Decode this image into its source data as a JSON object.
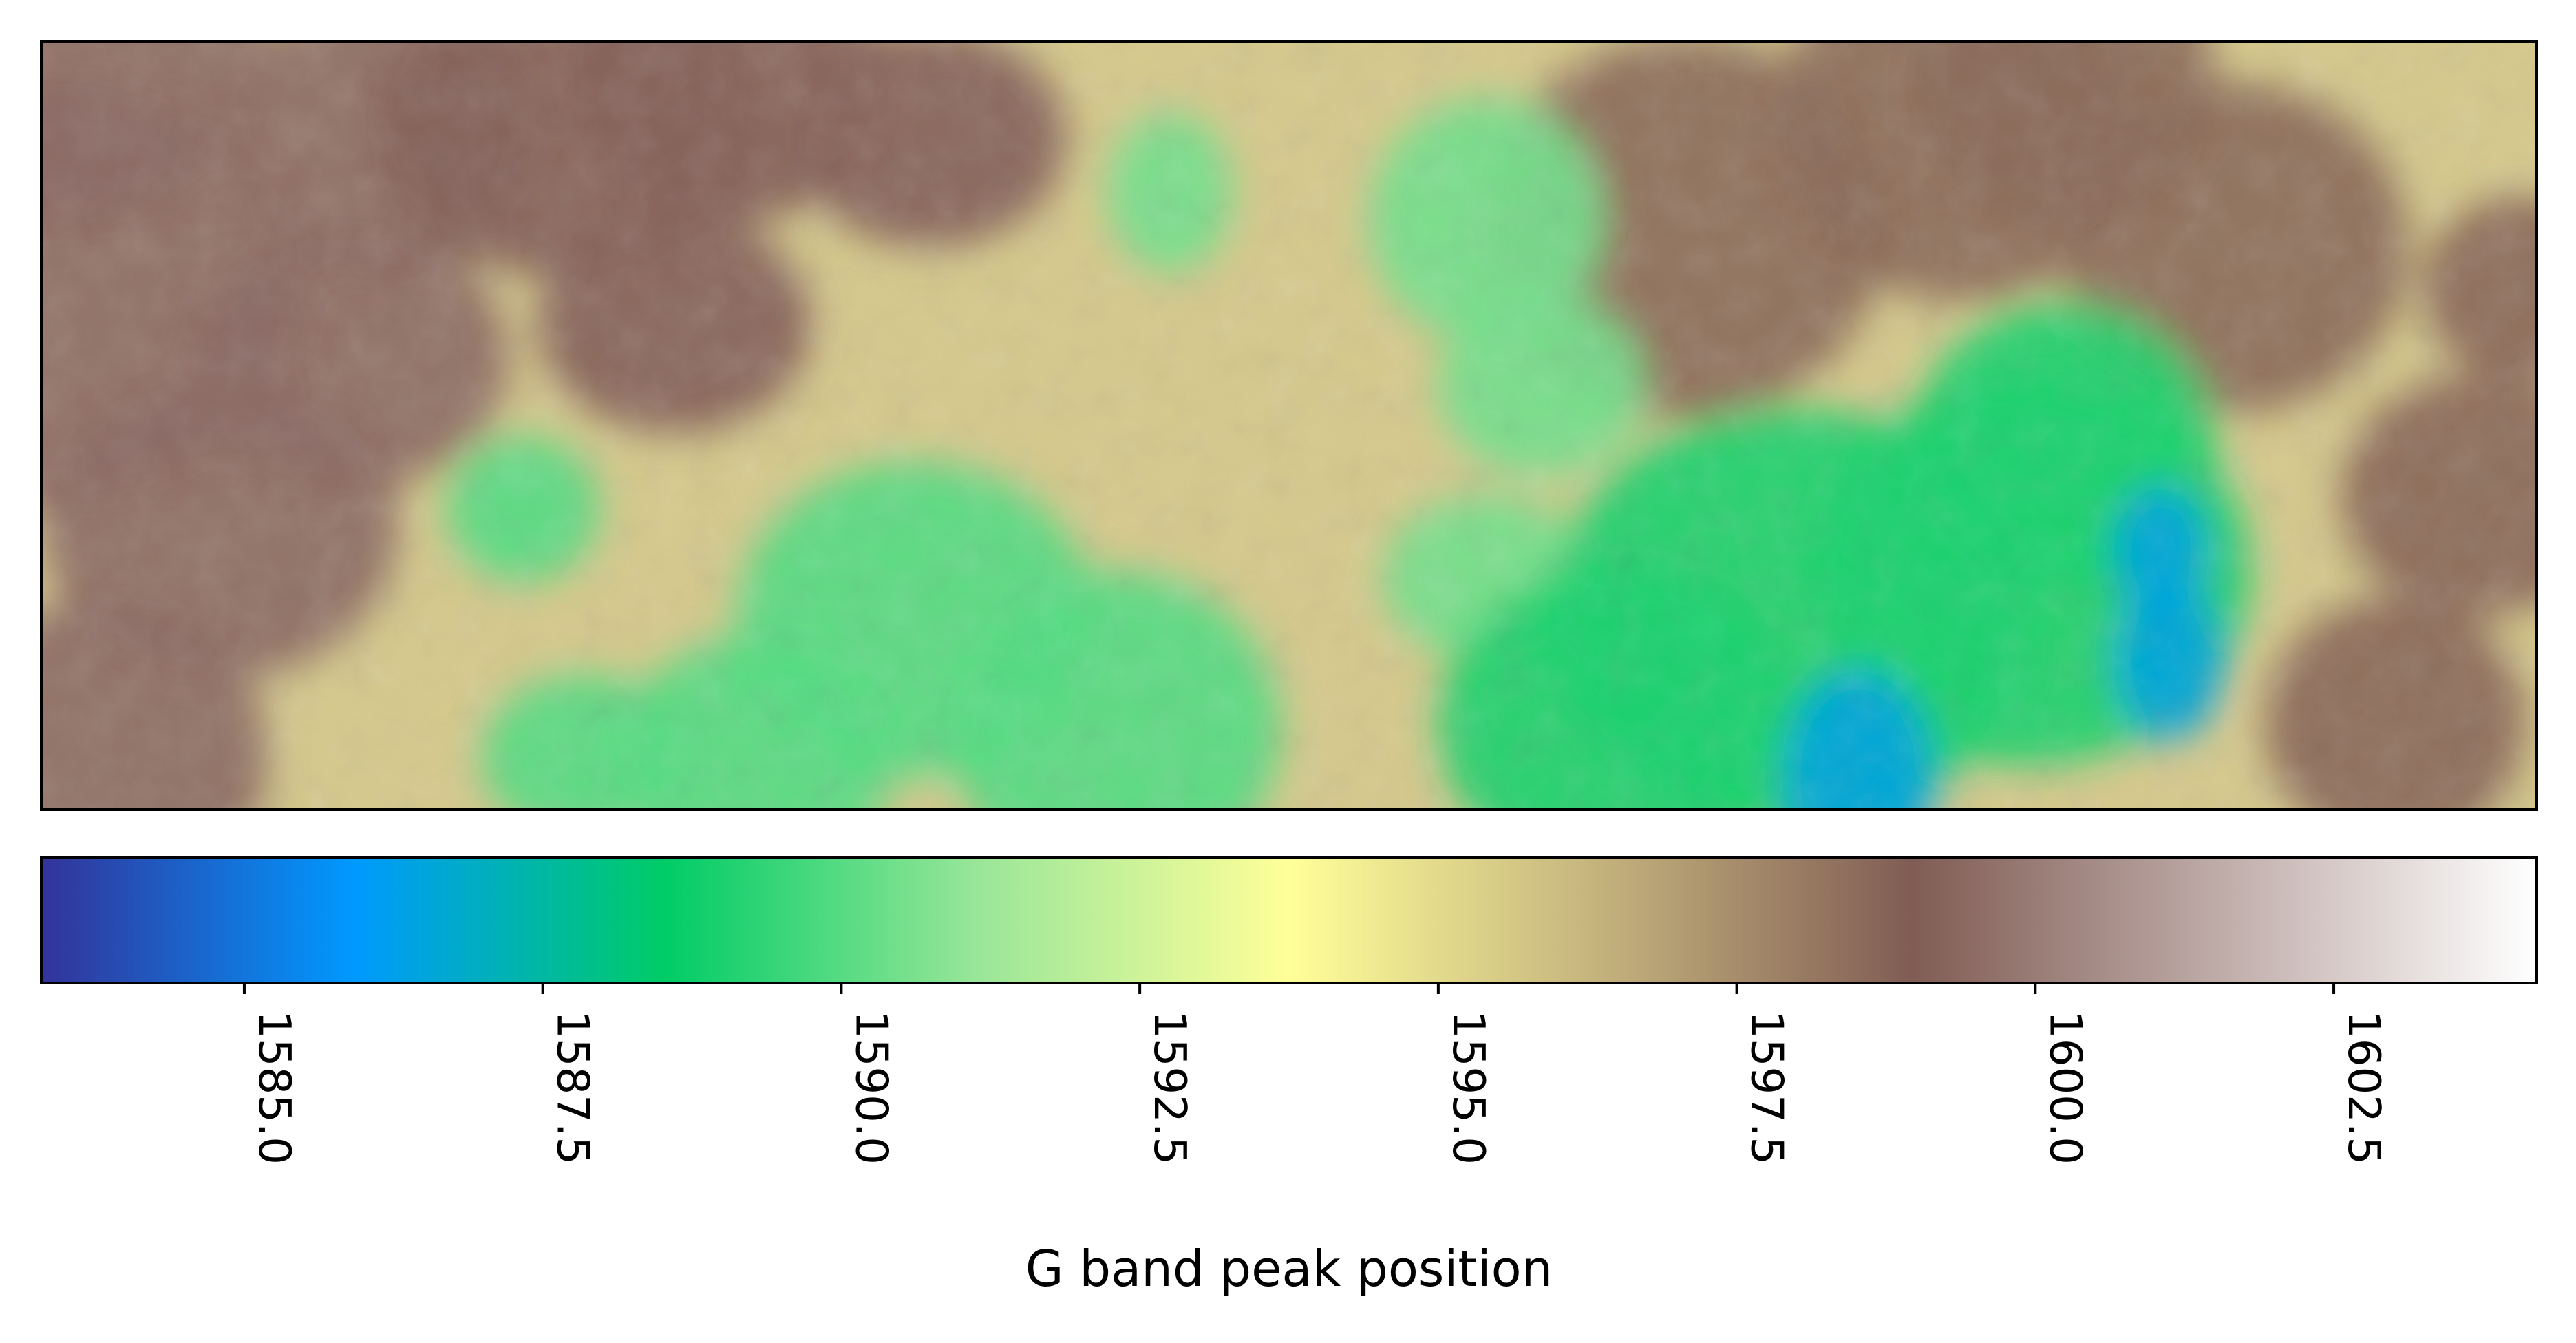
{
  "chart_data": {
    "type": "heatmap",
    "title": "",
    "colormap": "terrain",
    "colormap_stops": [
      "#333399",
      "#0099ff",
      "#00cc66",
      "#99e699",
      "#ffff99",
      "#c4b27d",
      "#805c54",
      "#c0adaa",
      "#ffffff"
    ],
    "value_range": [
      1583.3,
      1604.2
    ],
    "contour_level": 1598.4,
    "axes_ticks_visible": false,
    "colorbar": {
      "orientation": "horizontal",
      "position": "bottom",
      "ticks": [
        1585.0,
        1587.5,
        1590.0,
        1592.5,
        1595.0,
        1597.5,
        1600.0,
        1602.5
      ],
      "tick_labels": [
        "1585.0",
        "1587.5",
        "1590.0",
        "1592.5",
        "1595.0",
        "1597.5",
        "1600.0",
        "1602.5"
      ],
      "tick_label_rotation": "270 degrees",
      "label": "G band peak position"
    },
    "regions": [
      {
        "name": "left-brown-region",
        "value": 1599.5
      },
      {
        "name": "upper-center-brown-region",
        "value": 1599.2
      },
      {
        "name": "upper-right-brown-region",
        "value": 1598.5
      },
      {
        "name": "right-edge-brown-strip",
        "value": 1598.6
      },
      {
        "name": "central-green-streak",
        "value": 1590.5
      },
      {
        "name": "lower-center-green-region",
        "value": 1590.0
      },
      {
        "name": "lower-right-green-region",
        "value": 1589.0
      },
      {
        "name": "lower-right-blue-spots",
        "value": 1586.5
      }
    ]
  }
}
